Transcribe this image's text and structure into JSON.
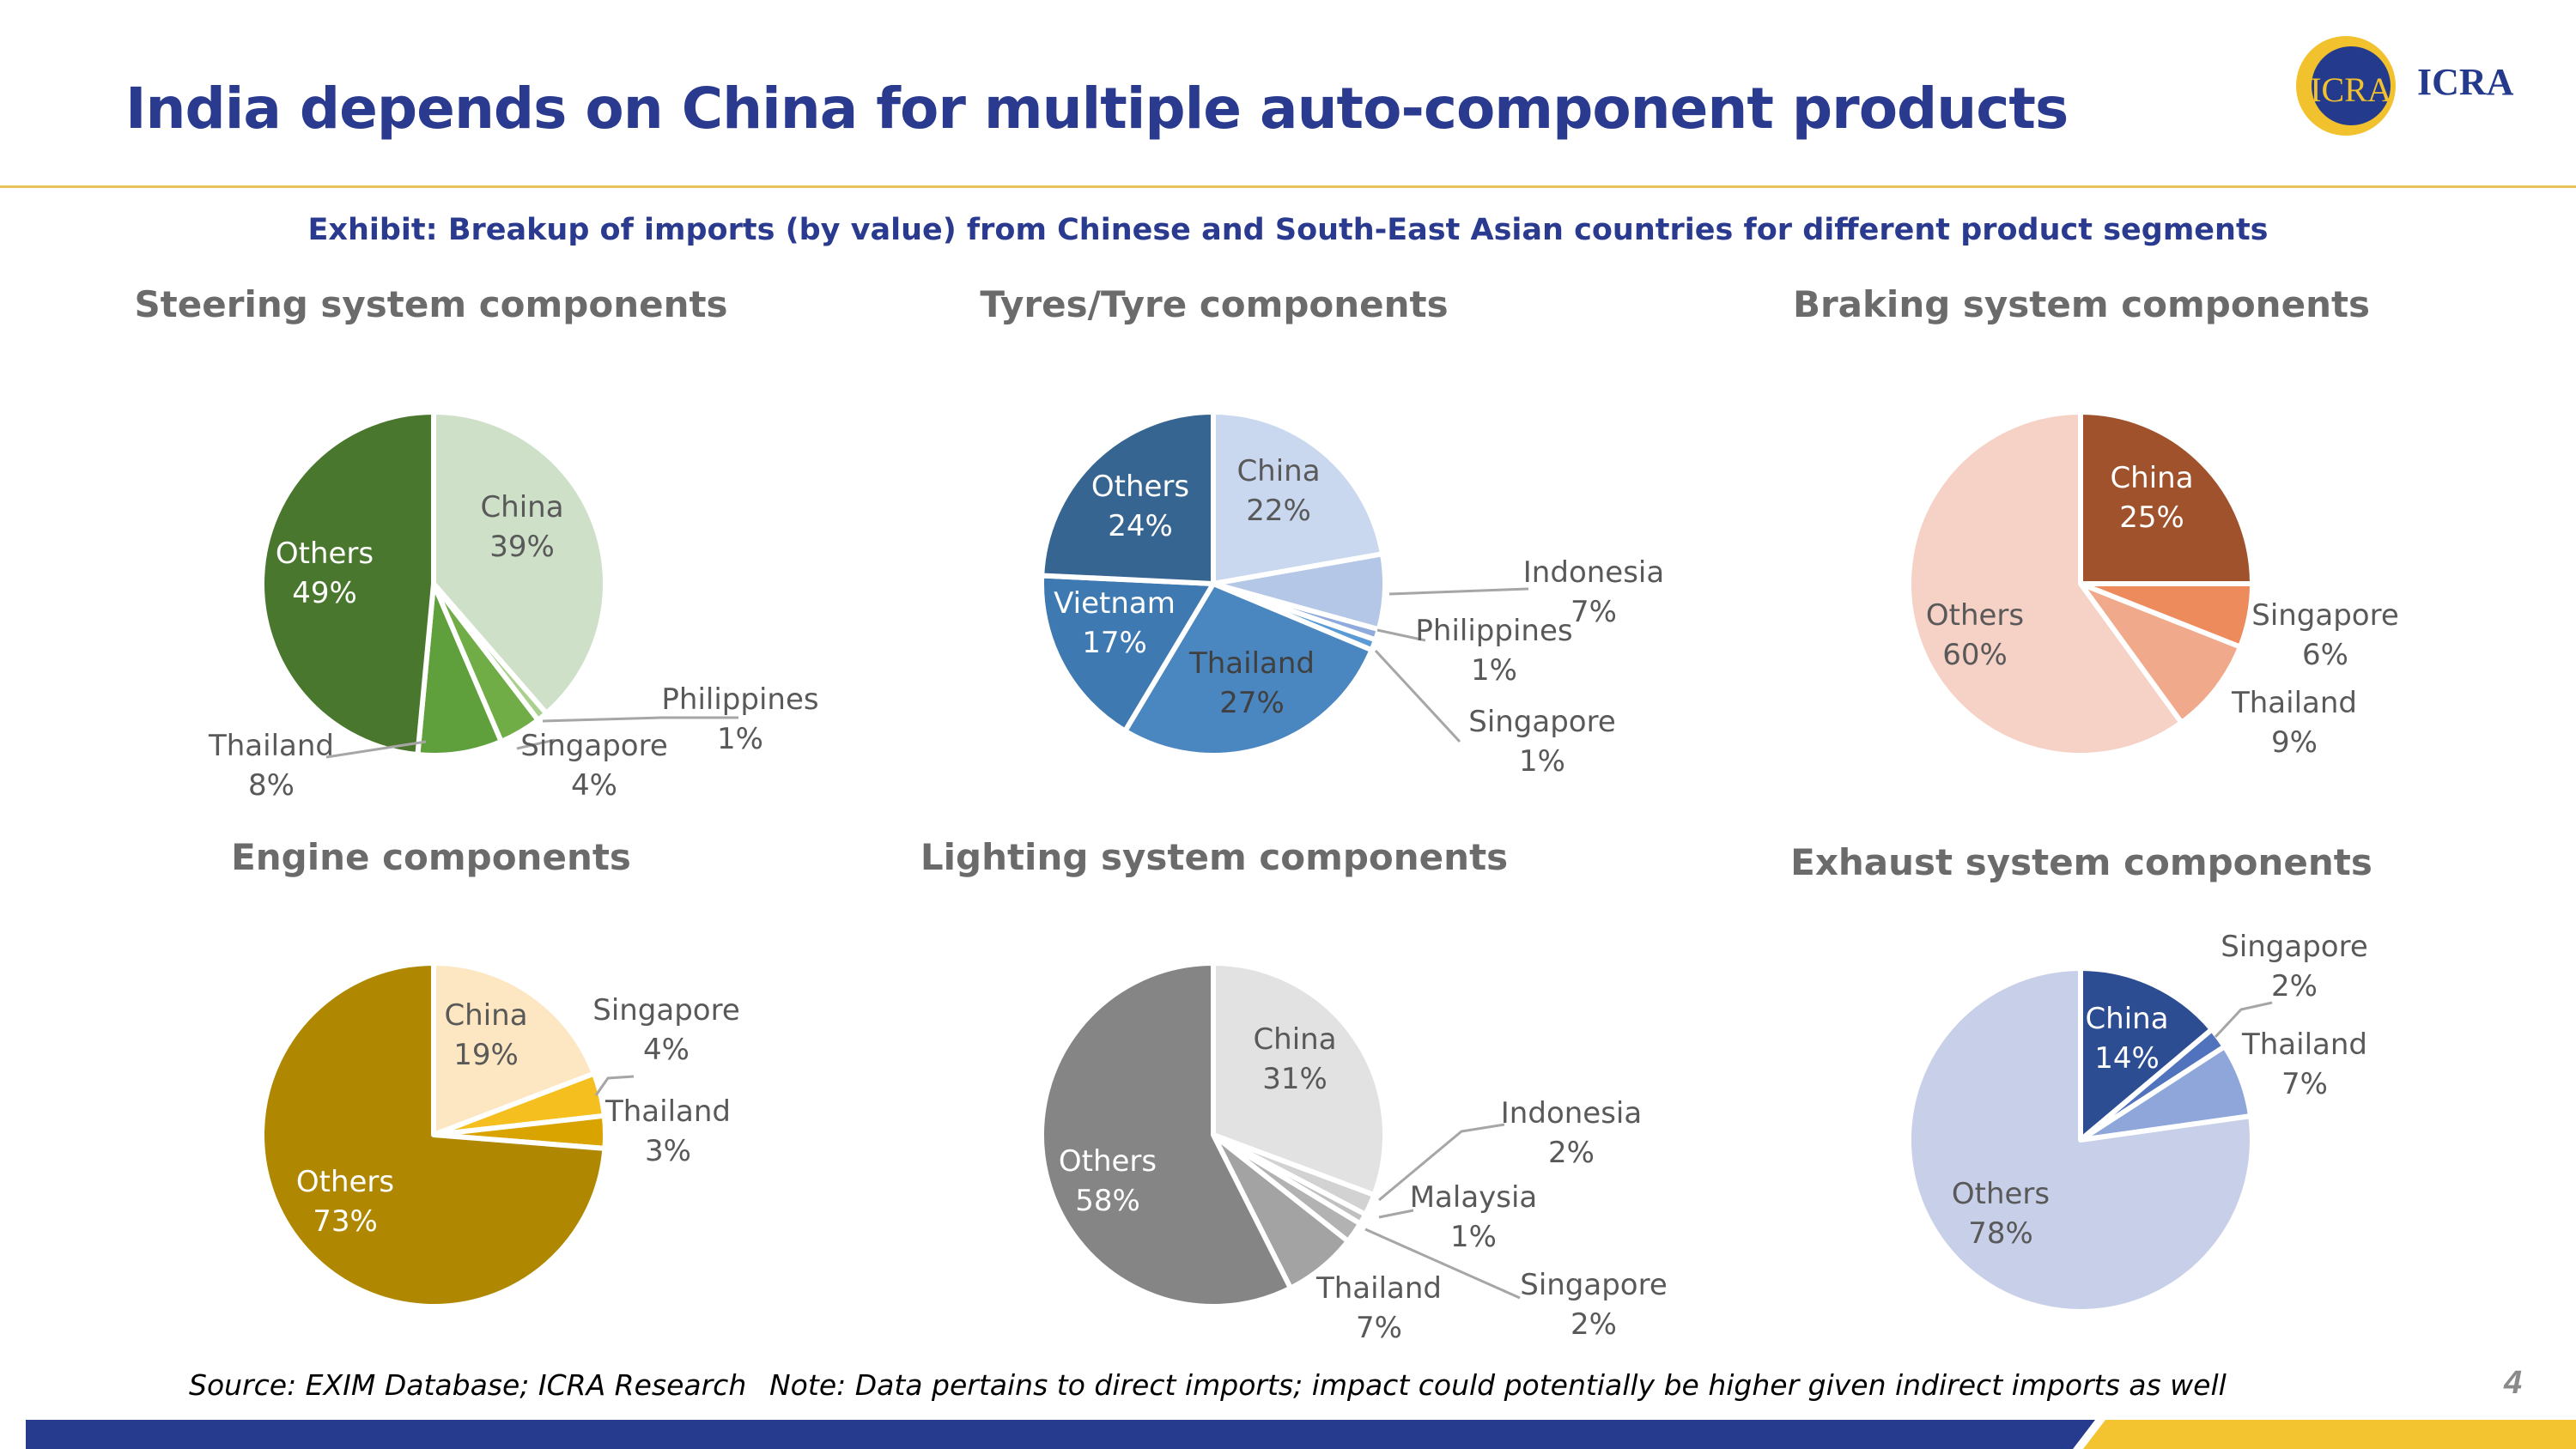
{
  "slide": {
    "title": "India depends on China for multiple auto-component products",
    "logo_text": "ICRA",
    "logo_mark": "ICRA",
    "exhibit": "Exhibit: Breakup of imports (by value) from Chinese and South-East Asian countries for different product segments",
    "source": "Source: EXIM Database; ICRA Research",
    "note": "Note: Data pertains to direct imports; impact could potentially be higher given indirect imports as well",
    "page_number": "4",
    "colors": {
      "title": "#2a3a8f",
      "rule": "#e8c35a",
      "footer_blue": "#263a8e",
      "footer_gold": "#f4c430"
    }
  },
  "chart_data": [
    {
      "type": "pie",
      "title": "Steering system components",
      "slices": [
        {
          "label": "China",
          "value": 39,
          "text": "39%",
          "color": "#cfe0c9"
        },
        {
          "label": "Philippines",
          "value": 1,
          "text": "1%",
          "color": "#a9d08e"
        },
        {
          "label": "Singapore",
          "value": 4,
          "text": "4%",
          "color": "#70ad47"
        },
        {
          "label": "Thailand",
          "value": 8,
          "text": "8%",
          "color": "#5fa03c"
        },
        {
          "label": "Others",
          "value": 49,
          "text": "49%",
          "color": "#4a772e"
        }
      ]
    },
    {
      "type": "pie",
      "title": "Tyres/Tyre components",
      "slices": [
        {
          "label": "China",
          "value": 22,
          "text": "22%",
          "color": "#c9d7ef"
        },
        {
          "label": "Indonesia",
          "value": 7,
          "text": "7%",
          "color": "#b4c7e7"
        },
        {
          "label": "Philippines",
          "value": 1,
          "text": "1%",
          "color": "#8faadc"
        },
        {
          "label": "Singapore",
          "value": 1,
          "text": "1%",
          "color": "#5b9bd5"
        },
        {
          "label": "Thailand",
          "value": 27,
          "text": "27%",
          "color": "#4a86c0"
        },
        {
          "label": "Vietnam",
          "value": 17,
          "text": "17%",
          "color": "#3f79b1"
        },
        {
          "label": "Others",
          "value": 24,
          "text": "24%",
          "color": "#376592"
        }
      ]
    },
    {
      "type": "pie",
      "title": "Braking system components",
      "slices": [
        {
          "label": "China",
          "value": 25,
          "text": "25%",
          "color": "#a0522d"
        },
        {
          "label": "Singapore",
          "value": 6,
          "text": "6%",
          "color": "#ed8b5c"
        },
        {
          "label": "Thailand",
          "value": 9,
          "text": "9%",
          "color": "#f0a98a"
        },
        {
          "label": "Others",
          "value": 60,
          "text": "60%",
          "color": "#f6d2c6"
        }
      ]
    },
    {
      "type": "pie",
      "title": "Engine components",
      "slices": [
        {
          "label": "China",
          "value": 19,
          "text": "19%",
          "color": "#fde6c2"
        },
        {
          "label": "Singapore",
          "value": 4,
          "text": "4%",
          "color": "#f5bf1f"
        },
        {
          "label": "Thailand",
          "value": 3,
          "text": "3%",
          "color": "#d9a300"
        },
        {
          "label": "Others",
          "value": 73,
          "text": "73%",
          "color": "#b08700"
        }
      ]
    },
    {
      "type": "pie",
      "title": "Lighting system components",
      "slices": [
        {
          "label": "China",
          "value": 31,
          "text": "31%",
          "color": "#e2e2e2"
        },
        {
          "label": "Indonesia",
          "value": 2,
          "text": "2%",
          "color": "#d2d2d2"
        },
        {
          "label": "Malaysia",
          "value": 1,
          "text": "1%",
          "color": "#c0c0c0"
        },
        {
          "label": "Singapore",
          "value": 2,
          "text": "2%",
          "color": "#b2b2b2"
        },
        {
          "label": "Thailand",
          "value": 7,
          "text": "7%",
          "color": "#a3a3a3"
        },
        {
          "label": "Others",
          "value": 58,
          "text": "58%",
          "color": "#858585"
        }
      ]
    },
    {
      "type": "pie",
      "title": "Exhaust system components",
      "slices": [
        {
          "label": "China",
          "value": 14,
          "text": "14%",
          "color": "#2d4d92"
        },
        {
          "label": "Singapore",
          "value": 2,
          "text": "2%",
          "color": "#5173bd"
        },
        {
          "label": "Thailand",
          "value": 7,
          "text": "7%",
          "color": "#8fa6db"
        },
        {
          "label": "Others",
          "value": 78,
          "text": "78%",
          "color": "#c8cfe8"
        }
      ]
    }
  ]
}
